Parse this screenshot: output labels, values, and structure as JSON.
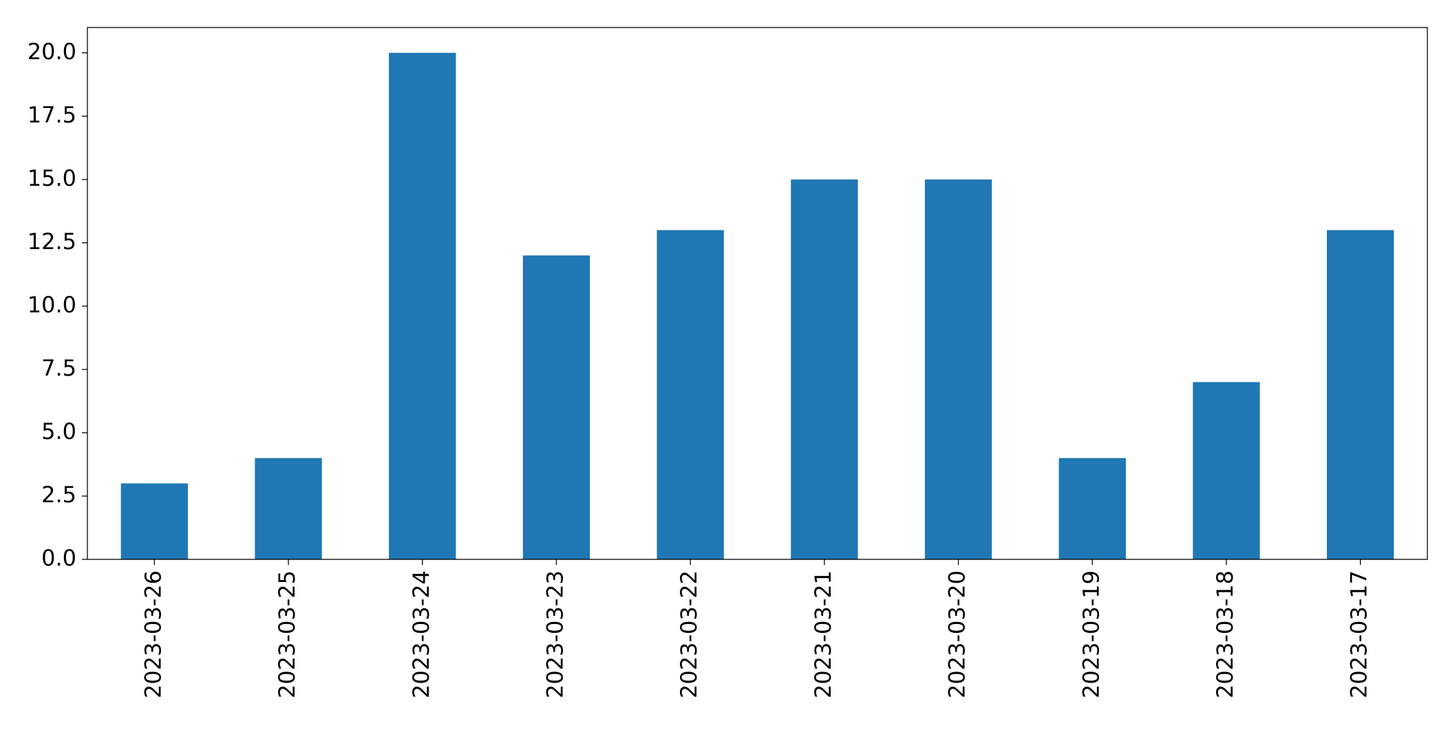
{
  "chart_data": {
    "type": "bar",
    "categories": [
      "2023-03-26",
      "2023-03-25",
      "2023-03-24",
      "2023-03-23",
      "2023-03-22",
      "2023-03-21",
      "2023-03-20",
      "2023-03-19",
      "2023-03-18",
      "2023-03-17"
    ],
    "values": [
      3,
      4,
      20,
      12,
      13,
      15,
      15,
      4,
      7,
      13
    ],
    "color": "#1f77b4",
    "ylim": [
      0,
      21
    ],
    "yticks": [
      {
        "value": 0,
        "label": "0.0"
      },
      2.5,
      {
        "value": 5,
        "label": "5.0"
      },
      7.5,
      {
        "value": 10,
        "label": "10.0"
      },
      12.5,
      {
        "value": 15,
        "label": "15.0"
      },
      17.5,
      {
        "value": 20,
        "label": "20.0"
      }
    ],
    "grid": false
  }
}
